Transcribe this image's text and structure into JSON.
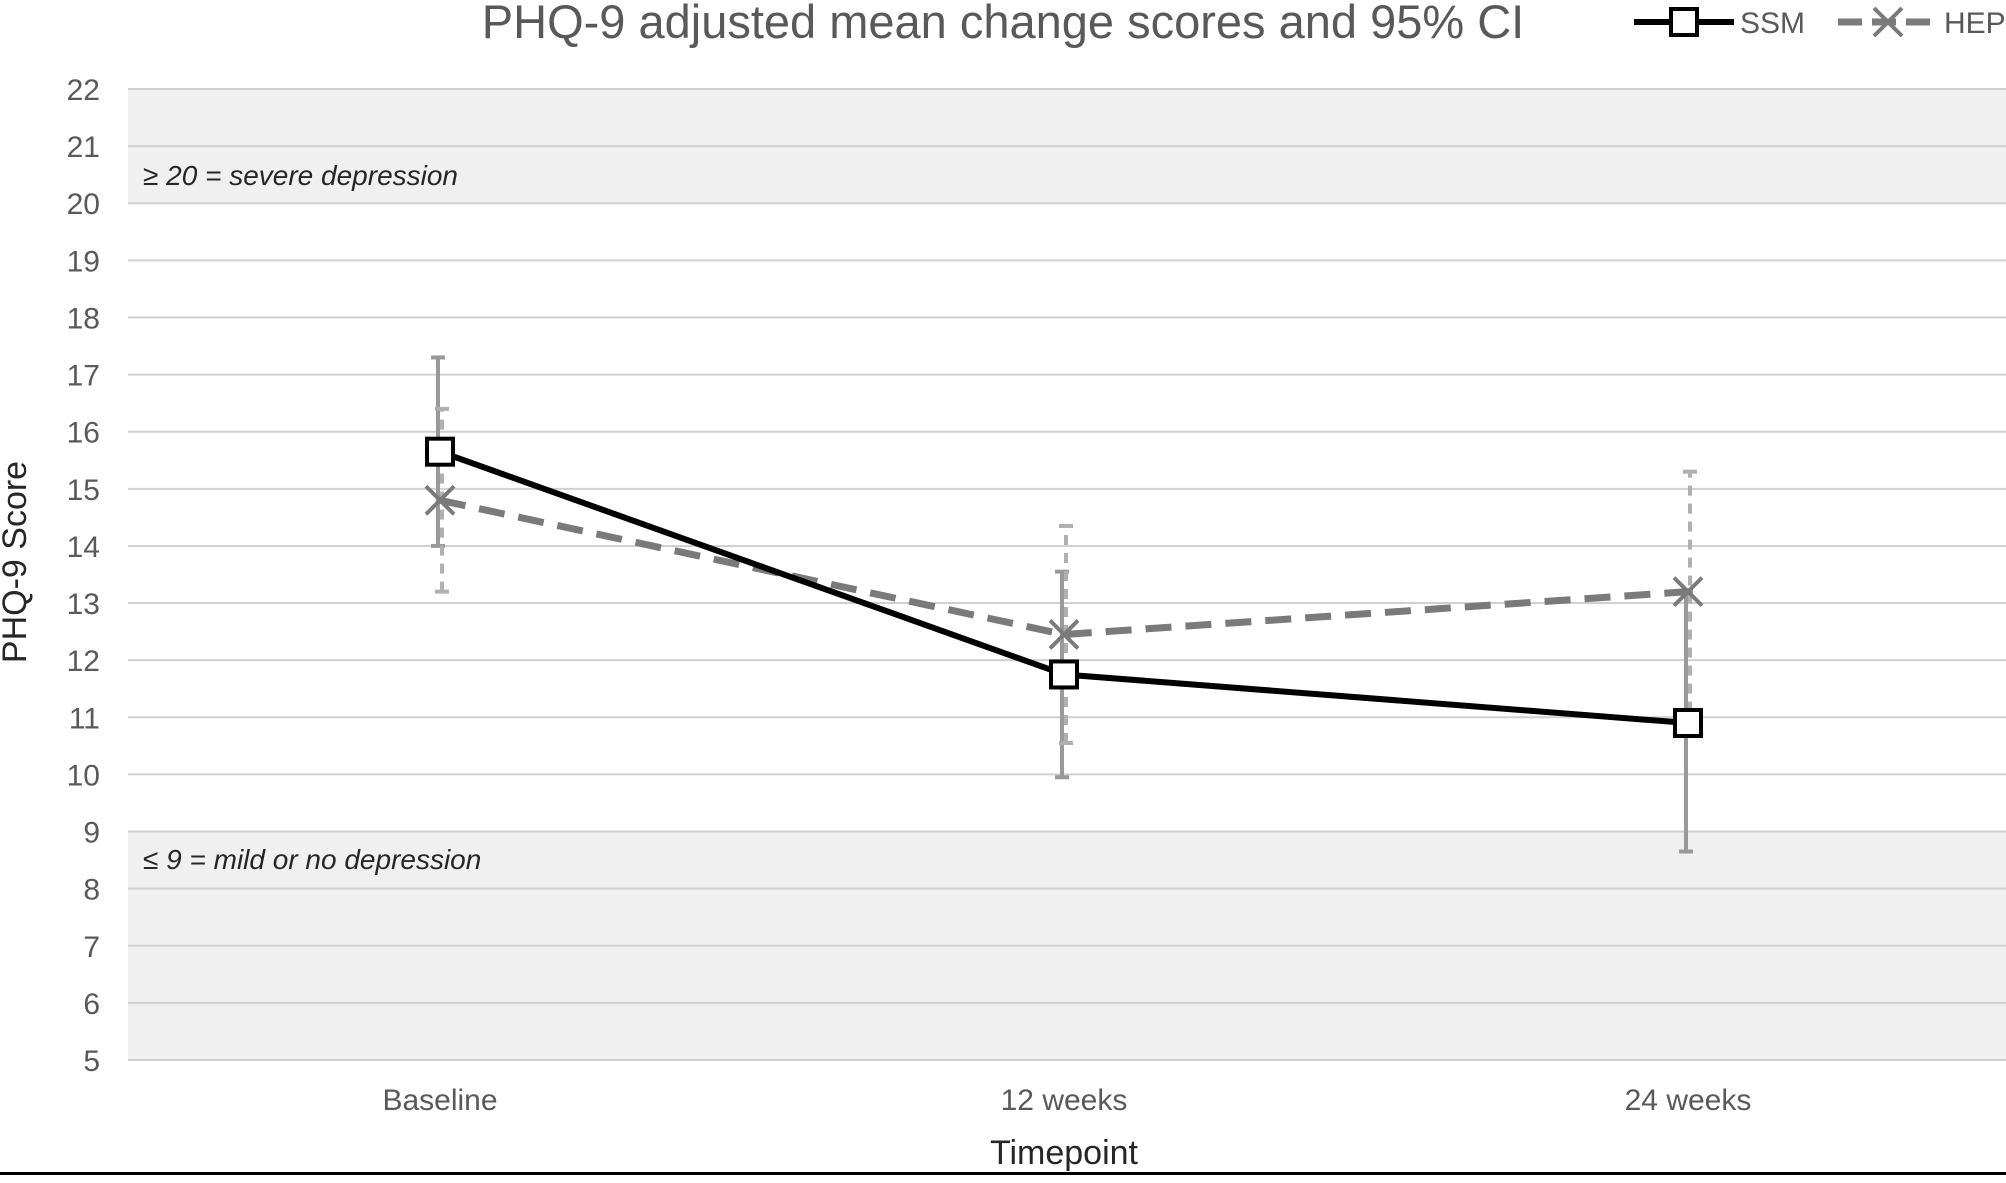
{
  "chart_data": {
    "type": "line",
    "title": "PHQ-9 adjusted mean change scores and 95% CI",
    "xlabel": "Timepoint",
    "ylabel": "PHQ-9 Score",
    "categories": [
      "Baseline",
      "12 weeks",
      "24 weeks"
    ],
    "ylim": [
      5,
      22
    ],
    "yticks": [
      5,
      6,
      7,
      8,
      9,
      10,
      11,
      12,
      13,
      14,
      15,
      16,
      17,
      18,
      19,
      20,
      21,
      22
    ],
    "grid": true,
    "legend": "top-right",
    "bands": [
      {
        "from": 20,
        "to": 22,
        "label": "≥ 20 = severe depression",
        "color": "#f0f0f0"
      },
      {
        "from": 5,
        "to": 9,
        "label": "≤ 9 = mild or no depression",
        "color": "#f0f0f0"
      }
    ],
    "series": [
      {
        "name": "SSM",
        "marker": "square",
        "dash": false,
        "color": "#000000",
        "error_color": "#999999",
        "values": [
          15.65,
          11.75,
          10.9
        ],
        "ci_low": [
          14.0,
          9.95,
          8.65
        ],
        "ci_high": [
          17.3,
          13.55,
          13.2
        ]
      },
      {
        "name": "HEP",
        "marker": "x",
        "dash": true,
        "color": "#7a7a7a",
        "error_color": "#b0b0b0",
        "values": [
          14.8,
          12.45,
          13.2
        ],
        "ci_low": [
          13.2,
          10.55,
          11.1
        ],
        "ci_high": [
          16.4,
          14.35,
          15.3
        ]
      }
    ]
  }
}
